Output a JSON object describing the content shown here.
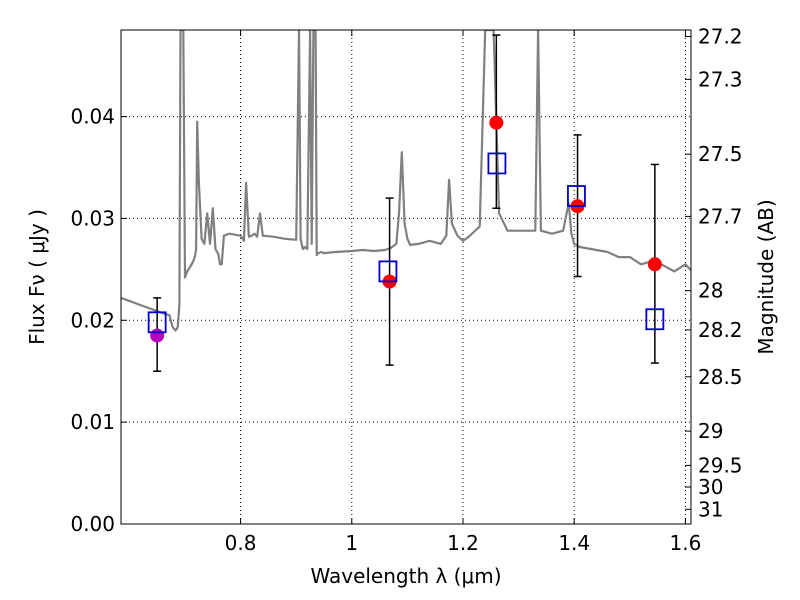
{
  "chart_data": {
    "type": "scatter",
    "xlabel": "Wavelength  λ (μm)",
    "ylabel": "Flux  Fν  ( μJy )",
    "ylabel_right": "Magnitude (AB)",
    "xlim": [
      0.585,
      1.61
    ],
    "ylim": [
      0.0,
      0.0485
    ],
    "grid": true,
    "x_ticks": [
      0.8,
      1.0,
      1.2,
      1.4,
      1.6
    ],
    "x_tick_labels": [
      "0.8",
      "1",
      "1.2",
      "1.4",
      "1.6"
    ],
    "y_ticks": [
      0.0,
      0.01,
      0.02,
      0.03,
      0.04
    ],
    "y_tick_labels": [
      "0.00",
      "0.01",
      "0.02",
      "0.03",
      "0.04"
    ],
    "right_ticks": [
      27.2,
      27.3,
      27.5,
      27.7,
      28,
      28.2,
      28.5,
      29,
      29.5,
      30,
      31
    ],
    "right_tick_labels": [
      "27.2",
      "27.3",
      "27.5",
      "27.7",
      "28",
      "28.2",
      "28.5",
      "29",
      "29.5",
      "30",
      "31"
    ],
    "colors": {
      "spectrum": "#808080",
      "observed": "#ff0000",
      "observed_first": "#bb00bb",
      "model": "#0000cc",
      "errorbar": "#000000"
    },
    "spectrum": {
      "x": [
        0.585,
        0.61,
        0.64,
        0.665,
        0.672,
        0.678,
        0.683,
        0.687,
        0.69,
        0.692,
        0.697,
        0.7,
        0.704,
        0.71,
        0.715,
        0.718,
        0.72,
        0.722,
        0.725,
        0.73,
        0.735,
        0.74,
        0.745,
        0.75,
        0.755,
        0.76,
        0.763,
        0.766,
        0.77,
        0.78,
        0.8,
        0.806,
        0.81,
        0.815,
        0.82,
        0.825,
        0.83,
        0.835,
        0.84,
        0.86,
        0.88,
        0.9,
        0.905,
        0.908,
        0.912,
        0.916,
        0.92,
        0.925,
        0.928,
        0.931,
        0.935,
        0.937,
        0.94,
        0.945,
        0.95,
        0.97,
        1.0,
        1.02,
        1.04,
        1.06,
        1.07,
        1.08,
        1.085,
        1.09,
        1.095,
        1.1,
        1.105,
        1.12,
        1.14,
        1.16,
        1.17,
        1.175,
        1.18,
        1.19,
        1.2,
        1.21,
        1.23,
        1.24,
        1.248,
        1.255,
        1.265,
        1.28,
        1.3,
        1.33,
        1.335,
        1.34,
        1.36,
        1.38,
        1.39,
        1.395,
        1.4,
        1.41,
        1.43,
        1.46,
        1.48,
        1.5,
        1.52,
        1.54,
        1.56,
        1.58,
        1.6,
        1.61
      ],
      "y": [
        0.0222,
        0.0217,
        0.0211,
        0.0206,
        0.0205,
        0.0193,
        0.019,
        0.0193,
        0.0215,
        0.0485,
        0.0485,
        0.0242,
        0.0248,
        0.0253,
        0.0258,
        0.0263,
        0.027,
        0.0395,
        0.0335,
        0.028,
        0.0275,
        0.0305,
        0.0275,
        0.031,
        0.027,
        0.0265,
        0.0255,
        0.0255,
        0.0283,
        0.0285,
        0.0283,
        0.0278,
        0.0335,
        0.0282,
        0.0283,
        0.0285,
        0.0282,
        0.0305,
        0.0283,
        0.0282,
        0.028,
        0.0279,
        0.0485,
        0.028,
        0.027,
        0.0272,
        0.027,
        0.0485,
        0.0275,
        0.0485,
        0.0485,
        0.0264,
        0.0266,
        0.0267,
        0.0266,
        0.0267,
        0.0268,
        0.0269,
        0.0268,
        0.0269,
        0.0271,
        0.0275,
        0.0305,
        0.0365,
        0.0295,
        0.028,
        0.0274,
        0.0275,
        0.0278,
        0.0275,
        0.0283,
        0.0338,
        0.0295,
        0.0283,
        0.0278,
        0.0282,
        0.0292,
        0.0485,
        0.0485,
        0.0485,
        0.0305,
        0.0288,
        0.0288,
        0.0288,
        0.0485,
        0.0288,
        0.0285,
        0.0288,
        0.0315,
        0.0285,
        0.0275,
        0.0272,
        0.027,
        0.0267,
        0.0262,
        0.0262,
        0.0255,
        0.0258,
        0.0254,
        0.0248,
        0.0255,
        0.0249
      ]
    },
    "observed": {
      "x": [
        0.65,
        1.068,
        1.26,
        1.406,
        1.545
      ],
      "y": [
        0.0185,
        0.0238,
        0.0394,
        0.0312,
        0.0255
      ],
      "yerr_low": [
        0.015,
        0.0156,
        0.031,
        0.0243,
        0.0158
      ],
      "yerr_high": [
        0.0222,
        0.032,
        0.048,
        0.0382,
        0.0353
      ]
    },
    "model": {
      "x": [
        0.65,
        1.065,
        1.261,
        1.404,
        1.545
      ],
      "y": [
        0.0198,
        0.0248,
        0.0354,
        0.0322,
        0.0201
      ]
    }
  }
}
